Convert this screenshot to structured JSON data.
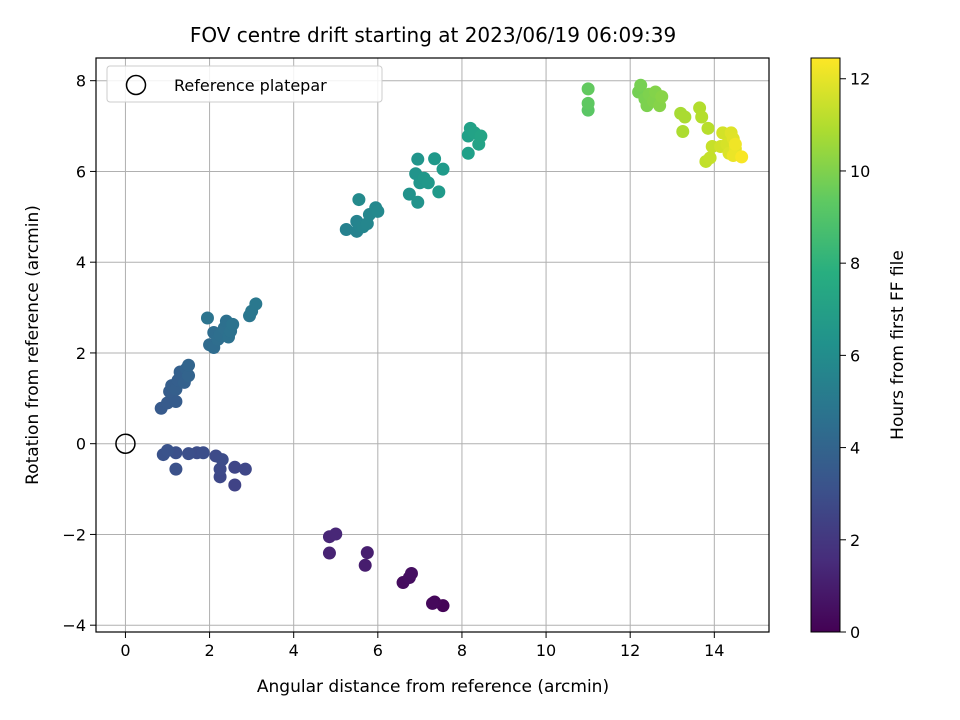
{
  "chart_data": {
    "type": "scatter",
    "title": "FOV centre drift starting at 2023/06/19 06:09:39",
    "xlabel": "Angular distance from reference (arcmin)",
    "ylabel": "Rotation from reference (arcmin)",
    "xlim": [
      -0.7,
      15.3
    ],
    "ylim": [
      -4.15,
      8.5
    ],
    "xticks": [
      0,
      2,
      4,
      6,
      8,
      10,
      12,
      14
    ],
    "yticks": [
      -4,
      -2,
      0,
      2,
      4,
      6,
      8
    ],
    "grid": true,
    "legend": {
      "placement": "top-left",
      "entries": [
        {
          "label": "Reference platepar",
          "marker": "open-circle"
        }
      ]
    },
    "reference_point": {
      "x": 0,
      "y": 0
    },
    "colorbar": {
      "label": "Hours from first FF file",
      "colormap": "viridis",
      "range": [
        0,
        12.45
      ],
      "ticks": [
        0,
        2,
        4,
        6,
        8,
        10,
        12
      ]
    },
    "points": [
      {
        "x": 7.55,
        "y": -3.57,
        "c": 0.1
      },
      {
        "x": 7.35,
        "y": -3.49,
        "c": 0.2
      },
      {
        "x": 7.3,
        "y": -3.52,
        "c": 0.25
      },
      {
        "x": 6.6,
        "y": -3.06,
        "c": 0.4
      },
      {
        "x": 6.75,
        "y": -2.95,
        "c": 0.45
      },
      {
        "x": 6.8,
        "y": -2.86,
        "c": 0.5
      },
      {
        "x": 5.7,
        "y": -2.68,
        "c": 1.0
      },
      {
        "x": 5.75,
        "y": -2.4,
        "c": 1.05
      },
      {
        "x": 4.85,
        "y": -2.41,
        "c": 1.2
      },
      {
        "x": 4.85,
        "y": -2.05,
        "c": 1.3
      },
      {
        "x": 5.0,
        "y": -1.99,
        "c": 1.35
      },
      {
        "x": 2.6,
        "y": -0.91,
        "c": 2.5
      },
      {
        "x": 2.6,
        "y": -0.52,
        "c": 2.6
      },
      {
        "x": 2.85,
        "y": -0.56,
        "c": 2.65
      },
      {
        "x": 2.25,
        "y": -0.73,
        "c": 2.7
      },
      {
        "x": 2.25,
        "y": -0.56,
        "c": 2.75
      },
      {
        "x": 2.15,
        "y": -0.27,
        "c": 2.8
      },
      {
        "x": 2.3,
        "y": -0.35,
        "c": 2.85
      },
      {
        "x": 1.7,
        "y": -0.2,
        "c": 2.9
      },
      {
        "x": 1.85,
        "y": -0.2,
        "c": 2.95
      },
      {
        "x": 1.5,
        "y": -0.22,
        "c": 3.0
      },
      {
        "x": 1.2,
        "y": -0.2,
        "c": 3.05
      },
      {
        "x": 1.2,
        "y": -0.56,
        "c": 3.1
      },
      {
        "x": 0.9,
        "y": -0.24,
        "c": 3.15
      },
      {
        "x": 1.0,
        "y": -0.15,
        "c": 3.2
      },
      {
        "x": 0.85,
        "y": 0.78,
        "c": 3.5
      },
      {
        "x": 1.0,
        "y": 0.9,
        "c": 3.55
      },
      {
        "x": 1.2,
        "y": 0.93,
        "c": 3.6
      },
      {
        "x": 1.05,
        "y": 1.15,
        "c": 3.65
      },
      {
        "x": 1.1,
        "y": 1.28,
        "c": 3.7
      },
      {
        "x": 1.2,
        "y": 1.2,
        "c": 3.72
      },
      {
        "x": 1.25,
        "y": 1.4,
        "c": 3.75
      },
      {
        "x": 1.3,
        "y": 1.58,
        "c": 3.8
      },
      {
        "x": 1.4,
        "y": 1.35,
        "c": 3.85
      },
      {
        "x": 1.45,
        "y": 1.65,
        "c": 3.9
      },
      {
        "x": 1.5,
        "y": 1.5,
        "c": 3.95
      },
      {
        "x": 1.5,
        "y": 1.73,
        "c": 4.0
      },
      {
        "x": 2.0,
        "y": 2.18,
        "c": 4.3
      },
      {
        "x": 2.1,
        "y": 2.12,
        "c": 4.35
      },
      {
        "x": 2.1,
        "y": 2.45,
        "c": 4.4
      },
      {
        "x": 2.2,
        "y": 2.3,
        "c": 4.45
      },
      {
        "x": 2.25,
        "y": 2.4,
        "c": 4.5
      },
      {
        "x": 2.35,
        "y": 2.55,
        "c": 4.55
      },
      {
        "x": 2.4,
        "y": 2.7,
        "c": 4.6
      },
      {
        "x": 2.45,
        "y": 2.35,
        "c": 4.65
      },
      {
        "x": 2.5,
        "y": 2.48,
        "c": 4.7
      },
      {
        "x": 2.55,
        "y": 2.63,
        "c": 4.75
      },
      {
        "x": 1.95,
        "y": 2.77,
        "c": 4.8
      },
      {
        "x": 2.95,
        "y": 2.82,
        "c": 4.9
      },
      {
        "x": 3.0,
        "y": 2.92,
        "c": 4.95
      },
      {
        "x": 3.1,
        "y": 3.08,
        "c": 5.0
      },
      {
        "x": 5.25,
        "y": 4.72,
        "c": 5.5
      },
      {
        "x": 5.5,
        "y": 4.68,
        "c": 5.55
      },
      {
        "x": 5.5,
        "y": 4.9,
        "c": 5.6
      },
      {
        "x": 5.55,
        "y": 4.82,
        "c": 5.65
      },
      {
        "x": 5.65,
        "y": 4.78,
        "c": 5.7
      },
      {
        "x": 5.75,
        "y": 4.85,
        "c": 5.75
      },
      {
        "x": 5.8,
        "y": 5.05,
        "c": 5.8
      },
      {
        "x": 5.95,
        "y": 5.2,
        "c": 5.85
      },
      {
        "x": 6.0,
        "y": 5.12,
        "c": 5.9
      },
      {
        "x": 5.55,
        "y": 5.38,
        "c": 5.95
      },
      {
        "x": 6.75,
        "y": 5.5,
        "c": 6.3
      },
      {
        "x": 6.95,
        "y": 5.32,
        "c": 6.35
      },
      {
        "x": 6.9,
        "y": 5.95,
        "c": 6.4
      },
      {
        "x": 6.95,
        "y": 6.27,
        "c": 6.45
      },
      {
        "x": 7.0,
        "y": 5.75,
        "c": 6.5
      },
      {
        "x": 7.1,
        "y": 5.85,
        "c": 6.55
      },
      {
        "x": 7.2,
        "y": 5.75,
        "c": 6.6
      },
      {
        "x": 7.35,
        "y": 6.28,
        "c": 6.65
      },
      {
        "x": 7.45,
        "y": 5.55,
        "c": 6.7
      },
      {
        "x": 7.55,
        "y": 6.05,
        "c": 6.75
      },
      {
        "x": 8.15,
        "y": 6.4,
        "c": 7.0
      },
      {
        "x": 8.15,
        "y": 6.78,
        "c": 7.05
      },
      {
        "x": 8.2,
        "y": 6.95,
        "c": 7.1
      },
      {
        "x": 8.3,
        "y": 6.85,
        "c": 7.15
      },
      {
        "x": 8.4,
        "y": 6.6,
        "c": 7.2
      },
      {
        "x": 8.45,
        "y": 6.78,
        "c": 7.25
      },
      {
        "x": 11.0,
        "y": 7.35,
        "c": 9.2
      },
      {
        "x": 11.0,
        "y": 7.5,
        "c": 9.3
      },
      {
        "x": 11.0,
        "y": 7.82,
        "c": 9.4
      },
      {
        "x": 12.2,
        "y": 7.75,
        "c": 9.8
      },
      {
        "x": 12.25,
        "y": 7.9,
        "c": 9.85
      },
      {
        "x": 12.35,
        "y": 7.6,
        "c": 9.9
      },
      {
        "x": 12.4,
        "y": 7.45,
        "c": 9.95
      },
      {
        "x": 12.45,
        "y": 7.7,
        "c": 10.0
      },
      {
        "x": 12.55,
        "y": 7.55,
        "c": 10.05
      },
      {
        "x": 12.6,
        "y": 7.75,
        "c": 10.1
      },
      {
        "x": 12.7,
        "y": 7.45,
        "c": 10.15
      },
      {
        "x": 12.75,
        "y": 7.65,
        "c": 10.2
      },
      {
        "x": 13.2,
        "y": 7.28,
        "c": 10.8
      },
      {
        "x": 13.3,
        "y": 7.2,
        "c": 10.85
      },
      {
        "x": 13.25,
        "y": 6.88,
        "c": 10.9
      },
      {
        "x": 13.65,
        "y": 7.4,
        "c": 11.0
      },
      {
        "x": 13.7,
        "y": 7.2,
        "c": 11.05
      },
      {
        "x": 13.85,
        "y": 6.95,
        "c": 11.1
      },
      {
        "x": 13.8,
        "y": 6.22,
        "c": 11.3
      },
      {
        "x": 13.9,
        "y": 6.3,
        "c": 11.35
      },
      {
        "x": 13.95,
        "y": 6.55,
        "c": 11.4
      },
      {
        "x": 14.15,
        "y": 6.55,
        "c": 11.6
      },
      {
        "x": 14.2,
        "y": 6.85,
        "c": 11.65
      },
      {
        "x": 14.3,
        "y": 6.6,
        "c": 11.7
      },
      {
        "x": 14.35,
        "y": 6.4,
        "c": 11.8
      },
      {
        "x": 14.4,
        "y": 6.85,
        "c": 11.85
      },
      {
        "x": 14.45,
        "y": 6.72,
        "c": 11.9
      },
      {
        "x": 14.5,
        "y": 6.5,
        "c": 12.0
      },
      {
        "x": 14.45,
        "y": 6.35,
        "c": 12.1
      },
      {
        "x": 14.5,
        "y": 6.6,
        "c": 12.2
      },
      {
        "x": 14.65,
        "y": 6.32,
        "c": 12.35
      }
    ]
  }
}
